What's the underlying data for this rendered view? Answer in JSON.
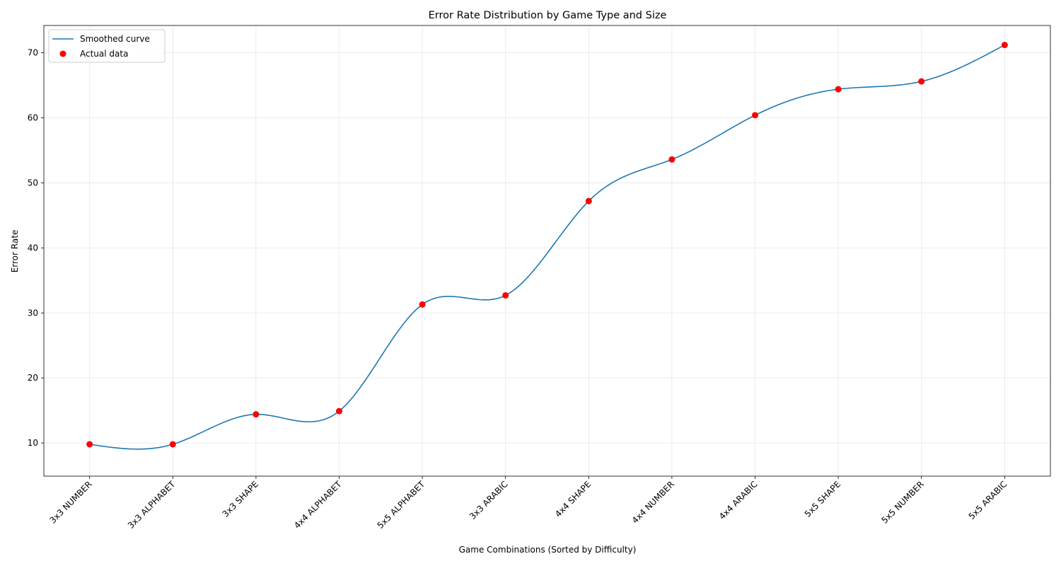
{
  "chart_data": {
    "type": "line",
    "title": "Error Rate Distribution by Game Type and Size",
    "xlabel": "Game Combinations (Sorted by Difficulty)",
    "ylabel": "Error Rate",
    "categories": [
      "3x3 NUMBER",
      "3x3 ALPHABET",
      "3x3 SHAPE",
      "4x4 ALPHABET",
      "5x5 ALPHABET",
      "3x3 ARABIC",
      "4x4 SHAPE",
      "4x4 NUMBER",
      "4x4 ARABIC",
      "5x5 SHAPE",
      "5x5 NUMBER",
      "5x5 ARABIC"
    ],
    "series": [
      {
        "name": "Smoothed curve",
        "kind": "line",
        "color": "#1f77b4",
        "values": [
          9.8,
          9.8,
          14.4,
          14.9,
          31.3,
          32.7,
          47.2,
          53.6,
          60.4,
          64.4,
          65.6,
          71.2
        ]
      },
      {
        "name": "Actual data",
        "kind": "scatter",
        "color": "#ff0000",
        "values": [
          9.8,
          9.8,
          14.4,
          14.9,
          31.3,
          32.7,
          47.2,
          53.6,
          60.4,
          64.4,
          65.6,
          71.2
        ]
      }
    ],
    "ylim": [
      4.9,
      74.2
    ],
    "yticks": [
      10,
      20,
      30,
      40,
      50,
      60,
      70
    ],
    "grid": true,
    "legend_position": "upper-left"
  }
}
